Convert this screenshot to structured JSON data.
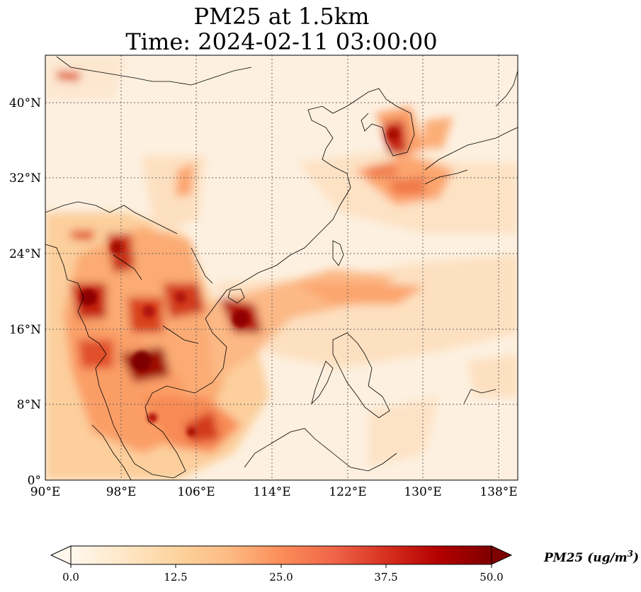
{
  "title_line1": "PM25 at 1.5km",
  "title_line2": "Time: 2024-02-11 03:00:00",
  "map": {
    "lon_range": [
      90,
      140
    ],
    "lat_range": [
      0,
      45
    ],
    "lon_ticks": [
      "90°E",
      "98°E",
      "106°E",
      "114°E",
      "122°E",
      "130°E",
      "138°E"
    ],
    "lat_ticks": [
      "0°",
      "8°N",
      "16°N",
      "24°N",
      "32°N",
      "40°N"
    ],
    "gridlines": true,
    "colormap": "OrRd"
  },
  "colorbar": {
    "label": "PM25 (ug/m³)",
    "label_base": "PM25 (ug/m",
    "label_sup": "3",
    "label_end": ")",
    "ticks": [
      "0.0",
      "12.5",
      "25.0",
      "37.5",
      "50.0"
    ],
    "min": 0,
    "max": 50,
    "extend": "both",
    "colors": [
      "#fff7ec",
      "#fee8c8",
      "#fdd49e",
      "#fdbb84",
      "#fc8d59",
      "#ef6548",
      "#d7301f",
      "#b30000",
      "#7f0000"
    ]
  }
}
